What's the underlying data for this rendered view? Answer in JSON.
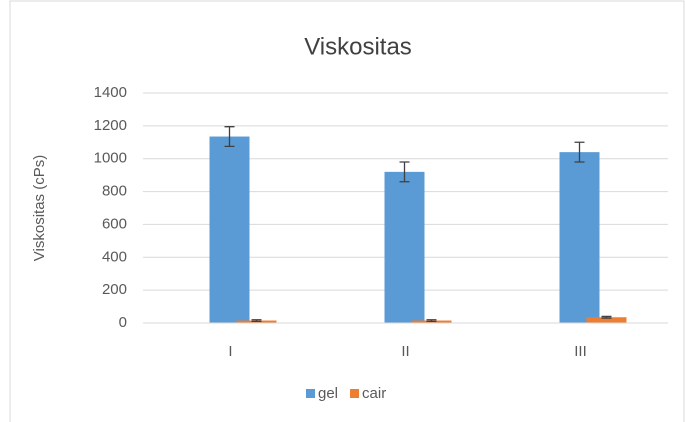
{
  "chart_data": {
    "type": "bar",
    "title": "Viskositas",
    "y_label": "Viskositas (cPs)",
    "categories": [
      "I",
      "II",
      "III"
    ],
    "series": [
      {
        "name": "gel",
        "color": "#5b9bd5",
        "values": [
          1135,
          920,
          1040
        ],
        "errors": [
          60,
          60,
          60
        ]
      },
      {
        "name": "cair",
        "color": "#ed7d31",
        "values": [
          15,
          15,
          35
        ],
        "errors": [
          5,
          5,
          5
        ]
      }
    ],
    "ylim": [
      0,
      1400
    ],
    "yticks": [
      0,
      200,
      400,
      600,
      800,
      1000,
      1200,
      1400
    ],
    "grid": true,
    "legend": "bottom"
  }
}
